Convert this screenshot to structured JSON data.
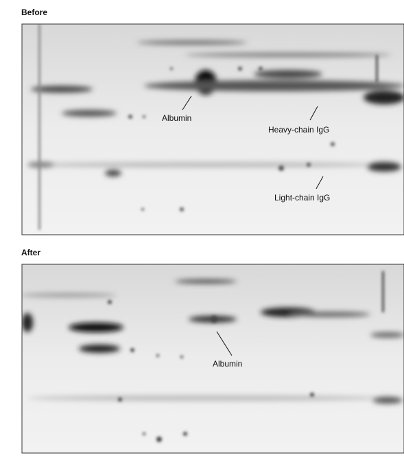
{
  "panels": [
    {
      "label": "Before",
      "annotations": [
        {
          "text": "Albumin"
        },
        {
          "text": "Heavy-chain IgG"
        },
        {
          "text": "Light-chain IgG"
        }
      ]
    },
    {
      "label": "After",
      "annotations": [
        {
          "text": "Albumin"
        }
      ]
    }
  ]
}
